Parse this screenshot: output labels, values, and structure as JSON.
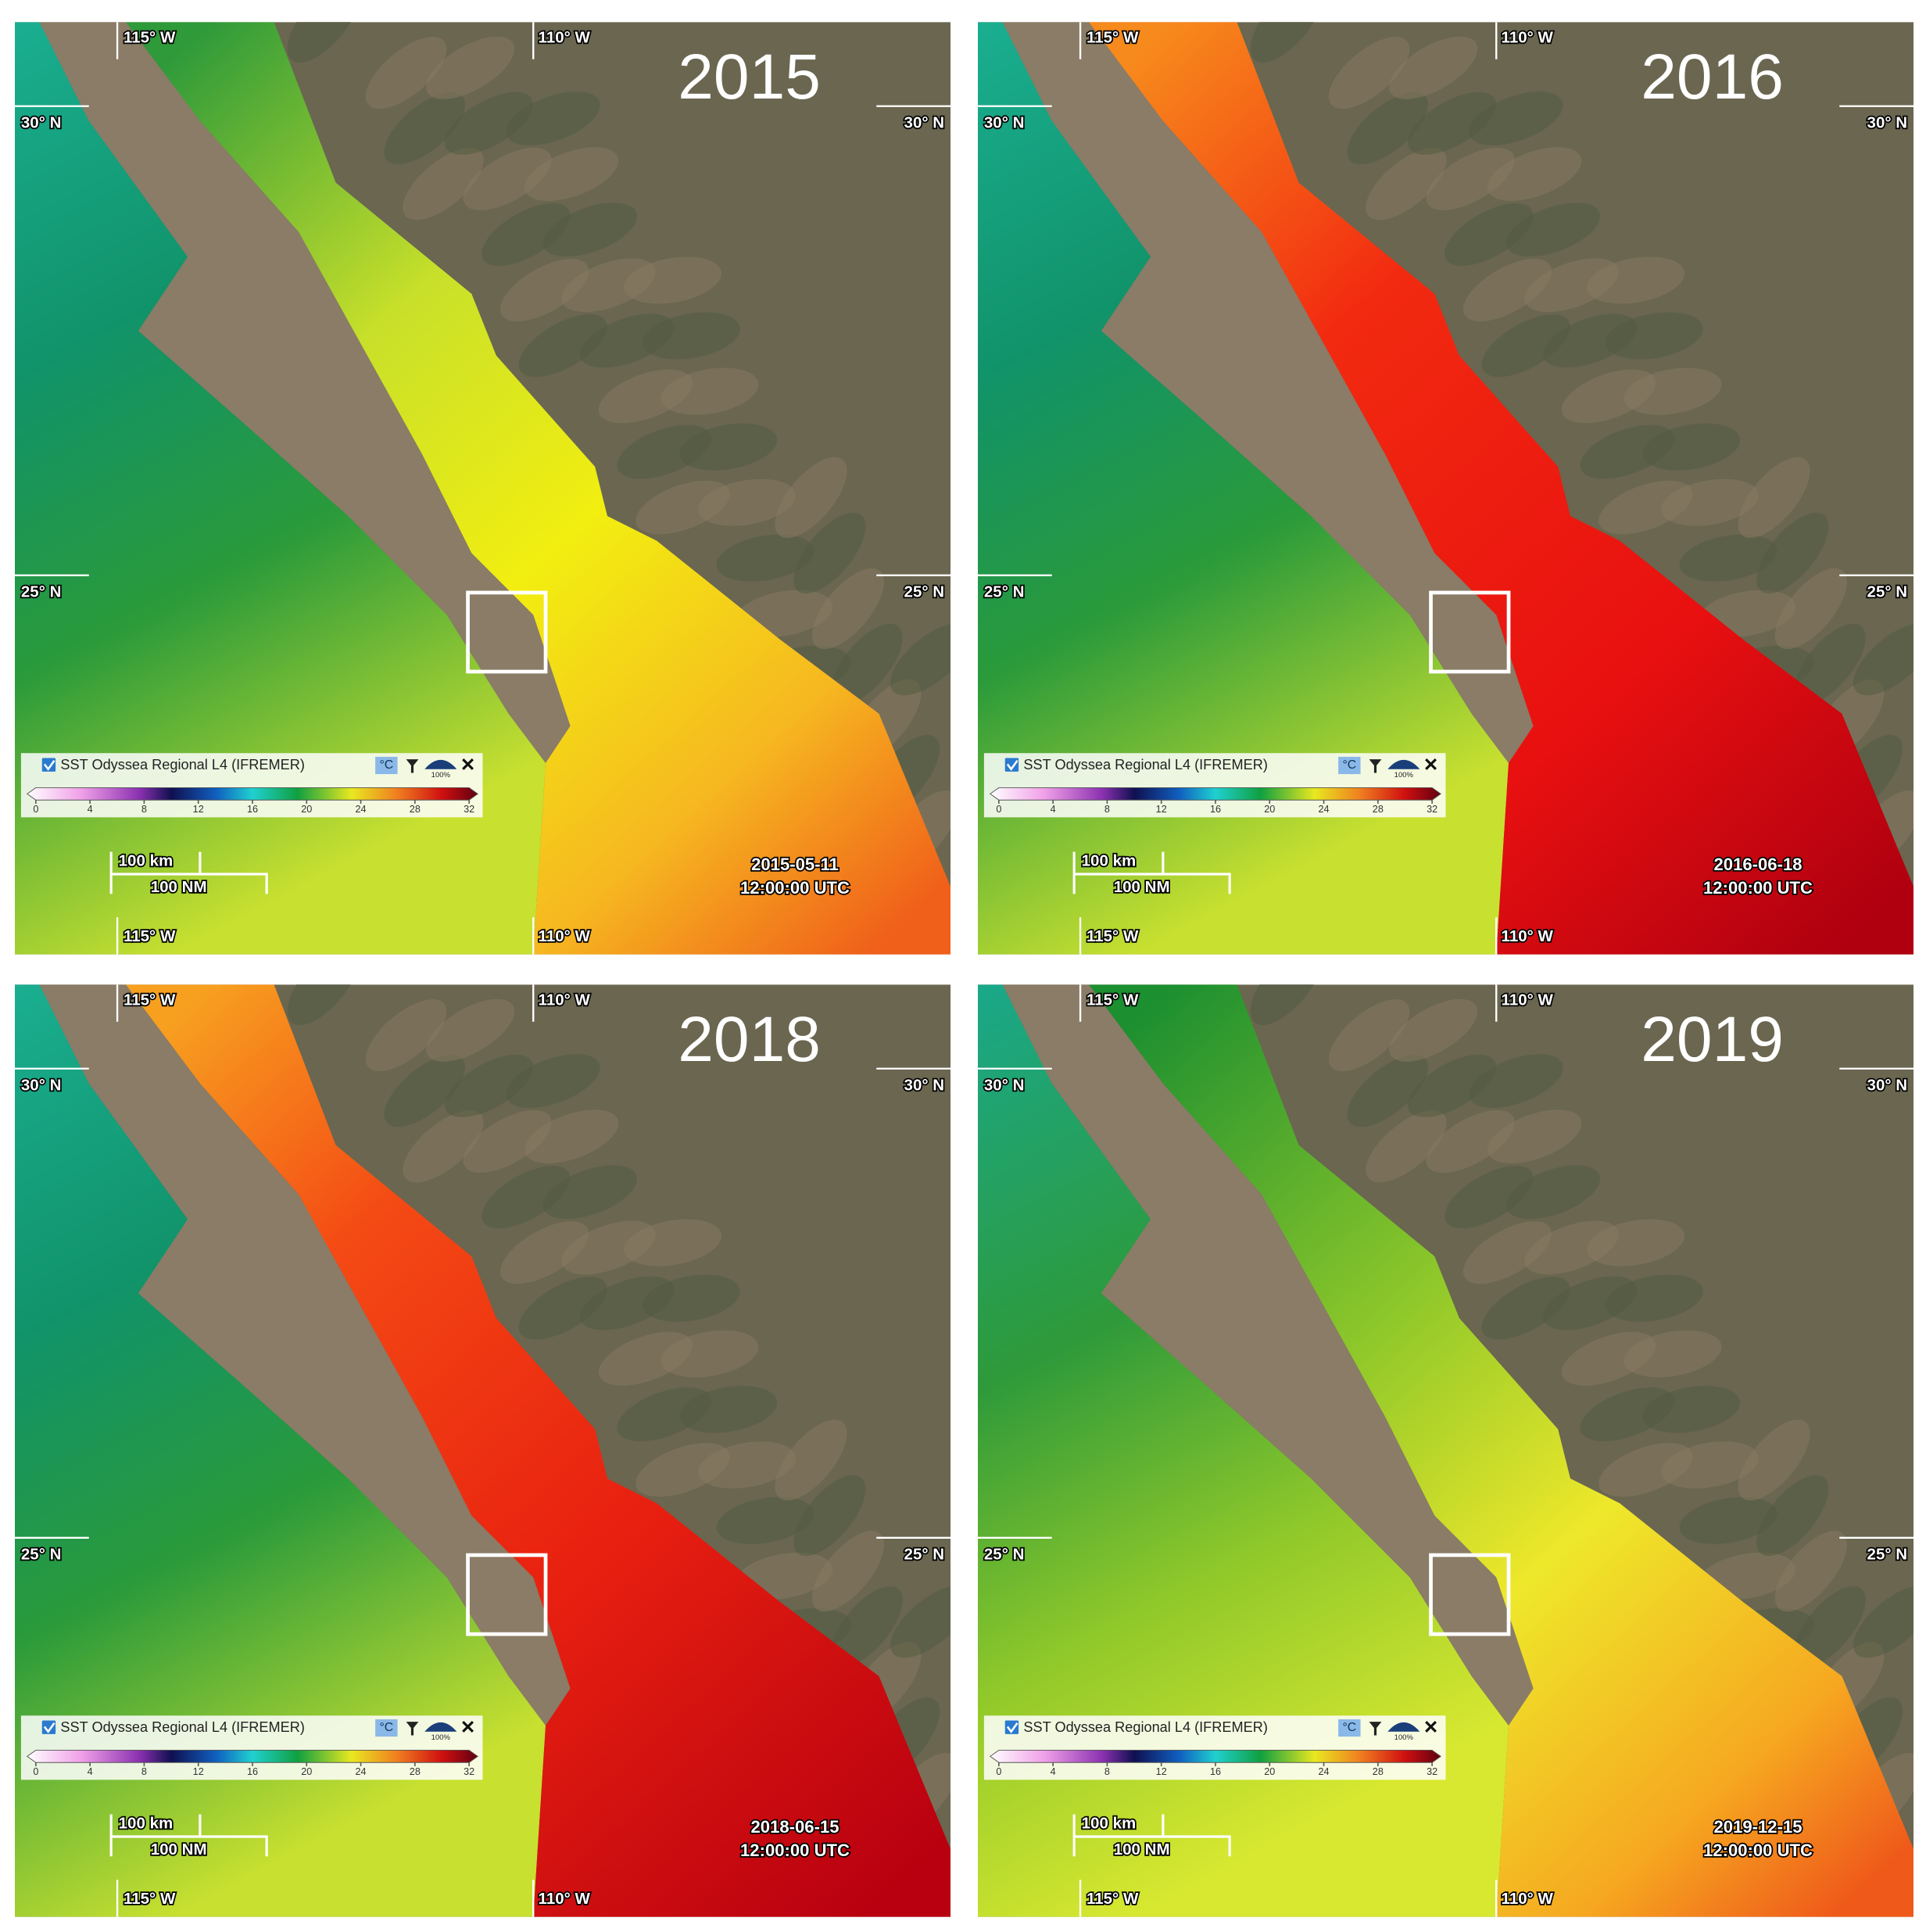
{
  "panels": [
    {
      "year": "2015",
      "date": "2015-05-11",
      "time": "12:00:00 UTC"
    },
    {
      "year": "2016",
      "date": "2016-06-18",
      "time": "12:00:00 UTC"
    },
    {
      "year": "2018",
      "date": "2018-06-15",
      "time": "12:00:00 UTC"
    },
    {
      "year": "2019",
      "date": "2019-12-15",
      "time": "12:00:00 UTC"
    }
  ],
  "graticule": {
    "lon_west": "115° W",
    "lon_east": "110° W",
    "lat_north": "30° N",
    "lat_south": "25° N"
  },
  "legend": {
    "layer": "SST Odyssea Regional L4 (IFREMER)",
    "unit": "°C",
    "opacity": "100%",
    "ticks": [
      0,
      4,
      8,
      12,
      16,
      20,
      24,
      28,
      32
    ]
  },
  "scale_bar": {
    "metric": "100 km",
    "nautical": "100 NM"
  }
}
